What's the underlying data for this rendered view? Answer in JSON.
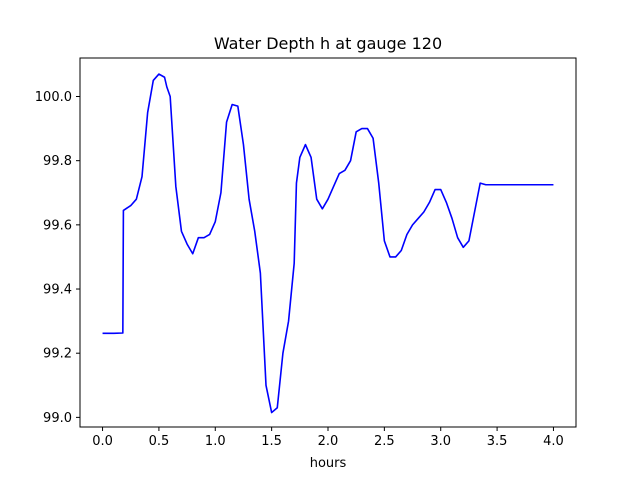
{
  "chart_data": {
    "type": "line",
    "title": "Water Depth h at gauge 120",
    "xlabel": "hours",
    "ylabel": "",
    "xlim": [
      -0.2,
      4.2
    ],
    "ylim": [
      98.97,
      100.12
    ],
    "xticks": [
      0.0,
      0.5,
      1.0,
      1.5,
      2.0,
      2.5,
      3.0,
      3.5,
      4.0
    ],
    "xtick_labels": [
      "0.0",
      "0.5",
      "1.0",
      "1.5",
      "2.0",
      "2.5",
      "3.0",
      "3.5",
      "4.0"
    ],
    "yticks": [
      99.0,
      99.2,
      99.4,
      99.6,
      99.8,
      100.0
    ],
    "ytick_labels": [
      "99.0",
      "99.2",
      "99.4",
      "99.6",
      "99.8",
      "100.0"
    ],
    "grid": false,
    "series": [
      {
        "color": "#0000ff",
        "x": [
          0.0,
          0.1,
          0.18,
          0.185,
          0.25,
          0.3,
          0.35,
          0.4,
          0.45,
          0.5,
          0.55,
          0.57,
          0.6,
          0.65,
          0.7,
          0.75,
          0.8,
          0.85,
          0.9,
          0.95,
          1.0,
          1.05,
          1.1,
          1.15,
          1.2,
          1.25,
          1.3,
          1.35,
          1.4,
          1.45,
          1.5,
          1.55,
          1.6,
          1.65,
          1.7,
          1.72,
          1.75,
          1.8,
          1.85,
          1.9,
          1.95,
          2.0,
          2.05,
          2.1,
          2.15,
          2.2,
          2.25,
          2.3,
          2.35,
          2.4,
          2.45,
          2.5,
          2.55,
          2.6,
          2.65,
          2.7,
          2.75,
          2.8,
          2.85,
          2.9,
          2.95,
          3.0,
          3.05,
          3.1,
          3.15,
          3.2,
          3.25,
          3.3,
          3.35,
          3.4,
          3.45,
          3.5,
          3.55,
          3.6,
          3.65,
          3.7,
          3.75,
          3.8,
          3.85,
          3.9,
          3.95,
          4.0
        ],
        "y": [
          99.262,
          99.262,
          99.263,
          99.645,
          99.66,
          99.68,
          99.75,
          99.95,
          100.05,
          100.07,
          100.06,
          100.03,
          100.0,
          99.72,
          99.58,
          99.54,
          99.51,
          99.56,
          99.56,
          99.57,
          99.61,
          99.7,
          99.92,
          99.975,
          99.97,
          99.85,
          99.68,
          99.58,
          99.45,
          99.1,
          99.015,
          99.03,
          99.2,
          99.3,
          99.48,
          99.73,
          99.81,
          99.85,
          99.81,
          99.68,
          99.65,
          99.68,
          99.72,
          99.76,
          99.77,
          99.8,
          99.89,
          99.9,
          99.9,
          99.87,
          99.73,
          99.55,
          99.5,
          99.5,
          99.52,
          99.57,
          99.6,
          99.62,
          99.64,
          99.67,
          99.71,
          99.71,
          99.67,
          99.62,
          99.56,
          99.53,
          99.55,
          99.64,
          99.73,
          99.725,
          99.725,
          99.725,
          99.725,
          99.725,
          99.725,
          99.725,
          99.725,
          99.725,
          99.725,
          99.725,
          99.725,
          99.725
        ]
      }
    ]
  }
}
